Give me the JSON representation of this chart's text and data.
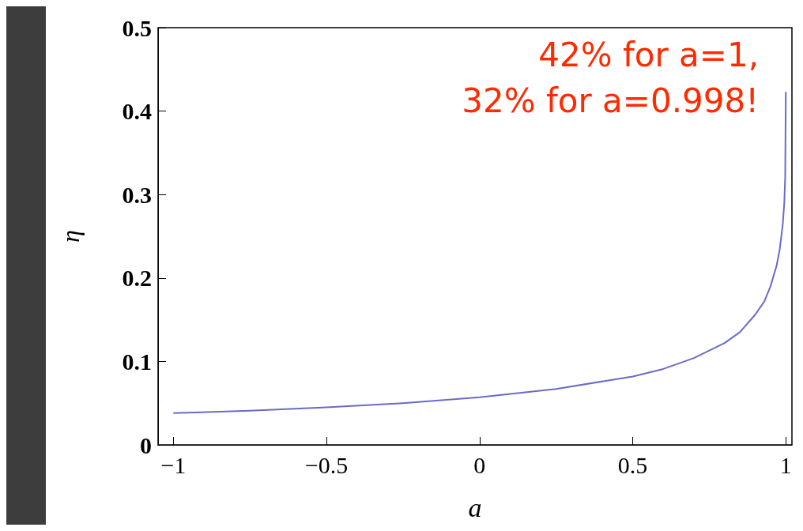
{
  "chart_data": {
    "type": "line",
    "xlabel": "a",
    "ylabel": "η",
    "x": [
      -1,
      -0.75,
      -0.5,
      -0.25,
      0,
      0.25,
      0.5,
      0.6,
      0.7,
      0.8,
      0.85,
      0.9,
      0.93,
      0.95,
      0.97,
      0.98,
      0.99,
      0.995,
      0.998,
      1
    ],
    "series": [
      {
        "color": "#6a6ac8",
        "values": [
          0.038,
          0.041,
          0.045,
          0.05,
          0.057,
          0.067,
          0.082,
          0.091,
          0.104,
          0.122,
          0.135,
          0.156,
          0.172,
          0.19,
          0.215,
          0.234,
          0.264,
          0.29,
          0.321,
          0.423
        ]
      }
    ],
    "xlim": [
      -1.05,
      1.02
    ],
    "ylim": [
      0,
      0.5
    ],
    "xticks": [
      {
        "value": -1,
        "label": "−1"
      },
      {
        "value": -0.5,
        "label": "−0.5"
      },
      0,
      0.5,
      1
    ],
    "yticks": [
      0,
      0.1,
      0.2,
      0.3,
      0.4,
      0.5
    ],
    "annotations": [
      "42% for a=1,",
      "32% for a=0.998!"
    ],
    "grid": false,
    "marker": "none",
    "line_style": "solid"
  }
}
